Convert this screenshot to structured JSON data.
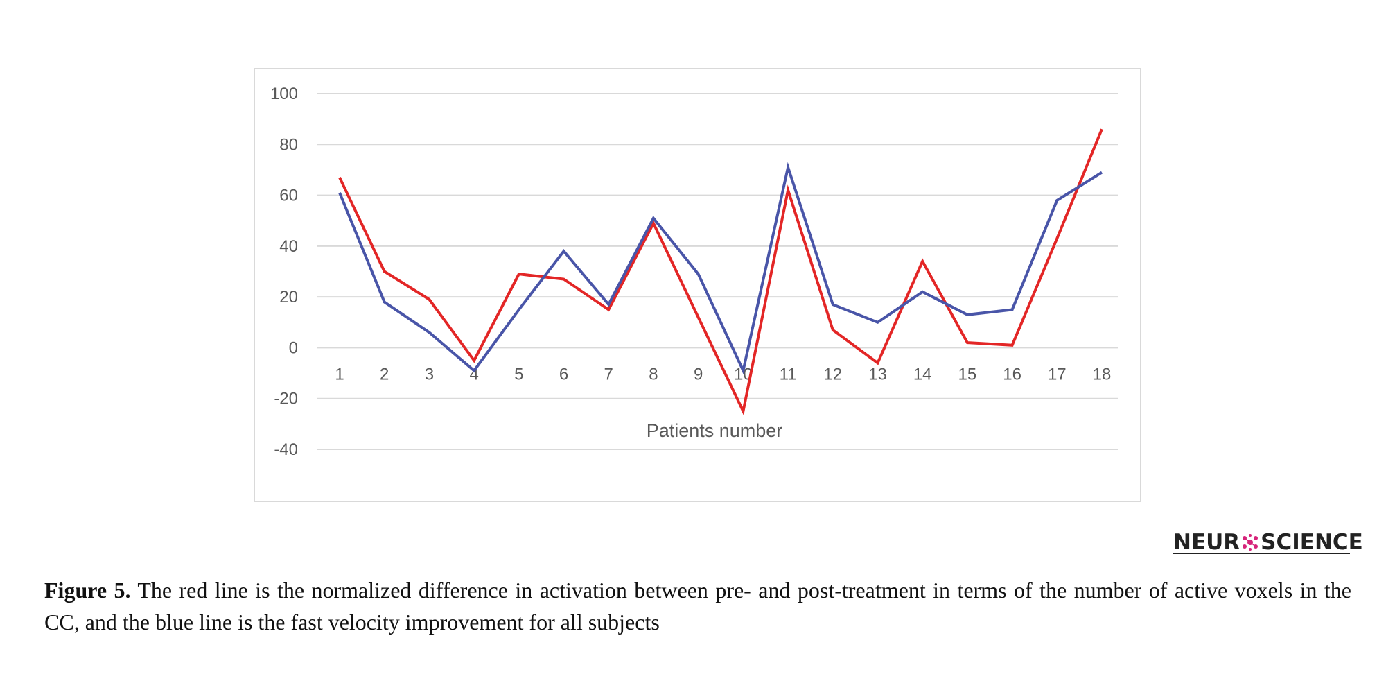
{
  "chart_data": {
    "type": "line",
    "xlabel": "Patients number",
    "ylabel": "",
    "categories": [
      "1",
      "2",
      "3",
      "4",
      "5",
      "6",
      "7",
      "8",
      "9",
      "10",
      "11",
      "12",
      "13",
      "14",
      "15",
      "16",
      "17",
      "18"
    ],
    "series": [
      {
        "color": "#e32626",
        "values": [
          67,
          30,
          19,
          -5,
          29,
          27,
          15,
          49,
          12,
          -25,
          62,
          7,
          -6,
          34,
          2,
          1,
          43,
          86
        ]
      },
      {
        "color": "#4955a8",
        "values": [
          61,
          18,
          6,
          -9,
          15,
          38,
          17,
          51,
          29,
          -9,
          71,
          17,
          10,
          22,
          13,
          15,
          58,
          69
        ]
      }
    ],
    "ylim": [
      -40,
      100
    ],
    "yticks": [
      100,
      80,
      60,
      40,
      20,
      0,
      -20,
      -40
    ],
    "grid": true,
    "gridline_color": "#d9d9d9"
  },
  "brand": {
    "left": "NEUR",
    "right": "SCIENCE",
    "mark_color": "#d6237a"
  },
  "caption": {
    "label": "Figure 5.",
    "text": " The red line is the normalized difference in activation between pre- and post-treatment in terms of the number of active voxels in the CC, and the blue line is the fast velocity improvement for all subjects"
  }
}
